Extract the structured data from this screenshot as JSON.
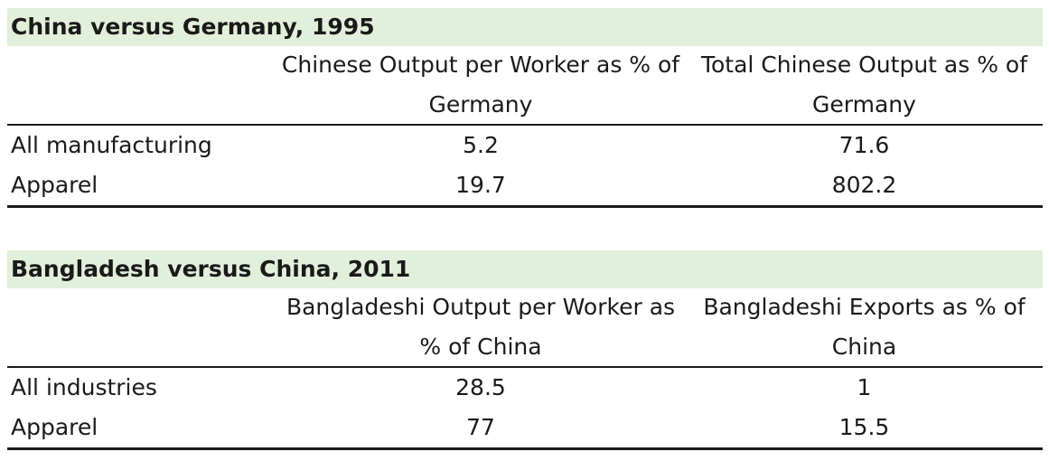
{
  "chart_data": [
    {
      "type": "table",
      "title": "China versus Germany, 1995",
      "columns": [
        "",
        "Chinese Output per Worker as % of Germany",
        "Total Chinese Output as % of Germany"
      ],
      "rows": [
        {
          "label": "All manufacturing",
          "values": [
            "5.2",
            "71.6"
          ]
        },
        {
          "label": "Apparel",
          "values": [
            "19.7",
            "802.2"
          ]
        }
      ]
    },
    {
      "type": "table",
      "title": "Bangladesh versus China, 2011",
      "columns": [
        "",
        "Bangladeshi Output per Worker as % of China",
        "Bangladeshi Exports as % of China"
      ],
      "rows": [
        {
          "label": "All industries",
          "values": [
            "28.5",
            "1"
          ]
        },
        {
          "label": "Apparel",
          "values": [
            "77",
            "15.5"
          ]
        }
      ]
    }
  ],
  "colors": {
    "title_background": "#e2efda",
    "text": "#1a1a1a",
    "rule": "#1a1a1a"
  }
}
